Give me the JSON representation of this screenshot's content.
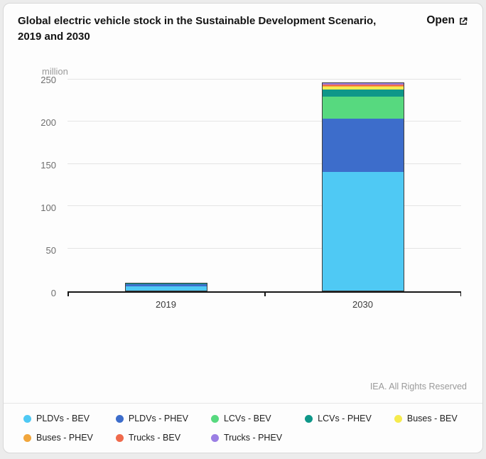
{
  "card": {
    "title": "Global electric vehicle stock in the Sustainable Development Scenario, 2019 and 2030",
    "open_button": {
      "label": "Open"
    },
    "footer": "IEA. All Rights Reserved"
  },
  "chart_data": {
    "type": "bar",
    "stacked": true,
    "title": "Global electric vehicle stock in the Sustainable Development Scenario, 2019 and 2030",
    "ylabel": "million",
    "categories": [
      "2019",
      "2030"
    ],
    "series": [
      {
        "name": "PLDVs - BEV",
        "color": "#4FC9F4",
        "values": [
          4.8,
          140
        ]
      },
      {
        "name": "PLDVs - PHEV",
        "color": "#3D6DCB",
        "values": [
          2.4,
          63
        ]
      },
      {
        "name": "LCVs - BEV",
        "color": "#57D97F",
        "values": [
          0.3,
          26
        ]
      },
      {
        "name": "LCVs - PHEV",
        "color": "#0E9789",
        "values": [
          0.1,
          8
        ]
      },
      {
        "name": "Buses - BEV",
        "color": "#F6EB4E",
        "values": [
          0.5,
          3
        ]
      },
      {
        "name": "Buses - PHEV",
        "color": "#F1A63C",
        "values": [
          0.1,
          1
        ]
      },
      {
        "name": "Trucks - BEV",
        "color": "#EF6A4C",
        "values": [
          0.05,
          1.5
        ]
      },
      {
        "name": "Trucks - PHEV",
        "color": "#9B7FE4",
        "values": [
          0.05,
          2
        ]
      }
    ],
    "ylim": [
      0,
      250
    ],
    "yticks": [
      0,
      50,
      100,
      150,
      200,
      250
    ],
    "grid": true,
    "legend_position": "bottom"
  }
}
